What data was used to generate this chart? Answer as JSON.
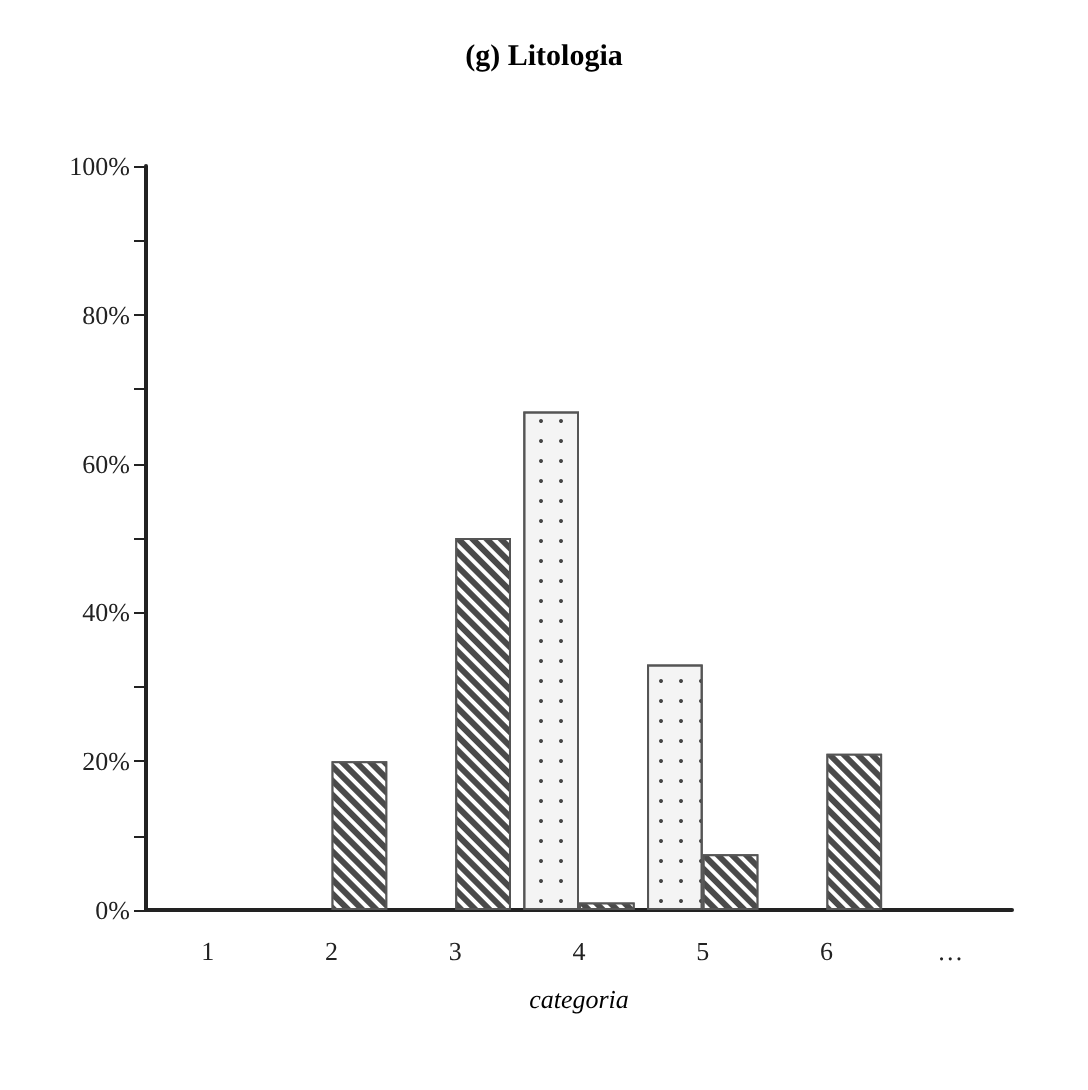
{
  "chart_data": {
    "type": "bar",
    "title": "(g) Litologia",
    "xlabel": "categoria",
    "categories": [
      "1",
      "2",
      "3",
      "4",
      "5",
      "6",
      "…"
    ],
    "series": [
      {
        "color": "#f4f4f4",
        "values": [
          null,
          null,
          null,
          67,
          33,
          null,
          null
        ]
      },
      {
        "color": "#4a4a4a",
        "values": [
          null,
          20,
          50,
          1,
          7.5,
          21,
          null
        ]
      }
    ],
    "ylim": [
      0,
      100
    ],
    "yticks": [
      {
        "value": 0,
        "label": "0%"
      },
      {
        "value": 10,
        "label": null
      },
      {
        "value": 20,
        "label": "20%"
      },
      {
        "value": 30,
        "label": null
      },
      {
        "value": 40,
        "label": "40%"
      },
      {
        "value": 50,
        "label": null
      },
      {
        "value": 60,
        "label": "60%"
      },
      {
        "value": 70,
        "label": null
      },
      {
        "value": 80,
        "label": "80%"
      },
      {
        "value": 90,
        "label": null
      },
      {
        "value": 100,
        "label": "100%"
      }
    ],
    "grid": false
  }
}
